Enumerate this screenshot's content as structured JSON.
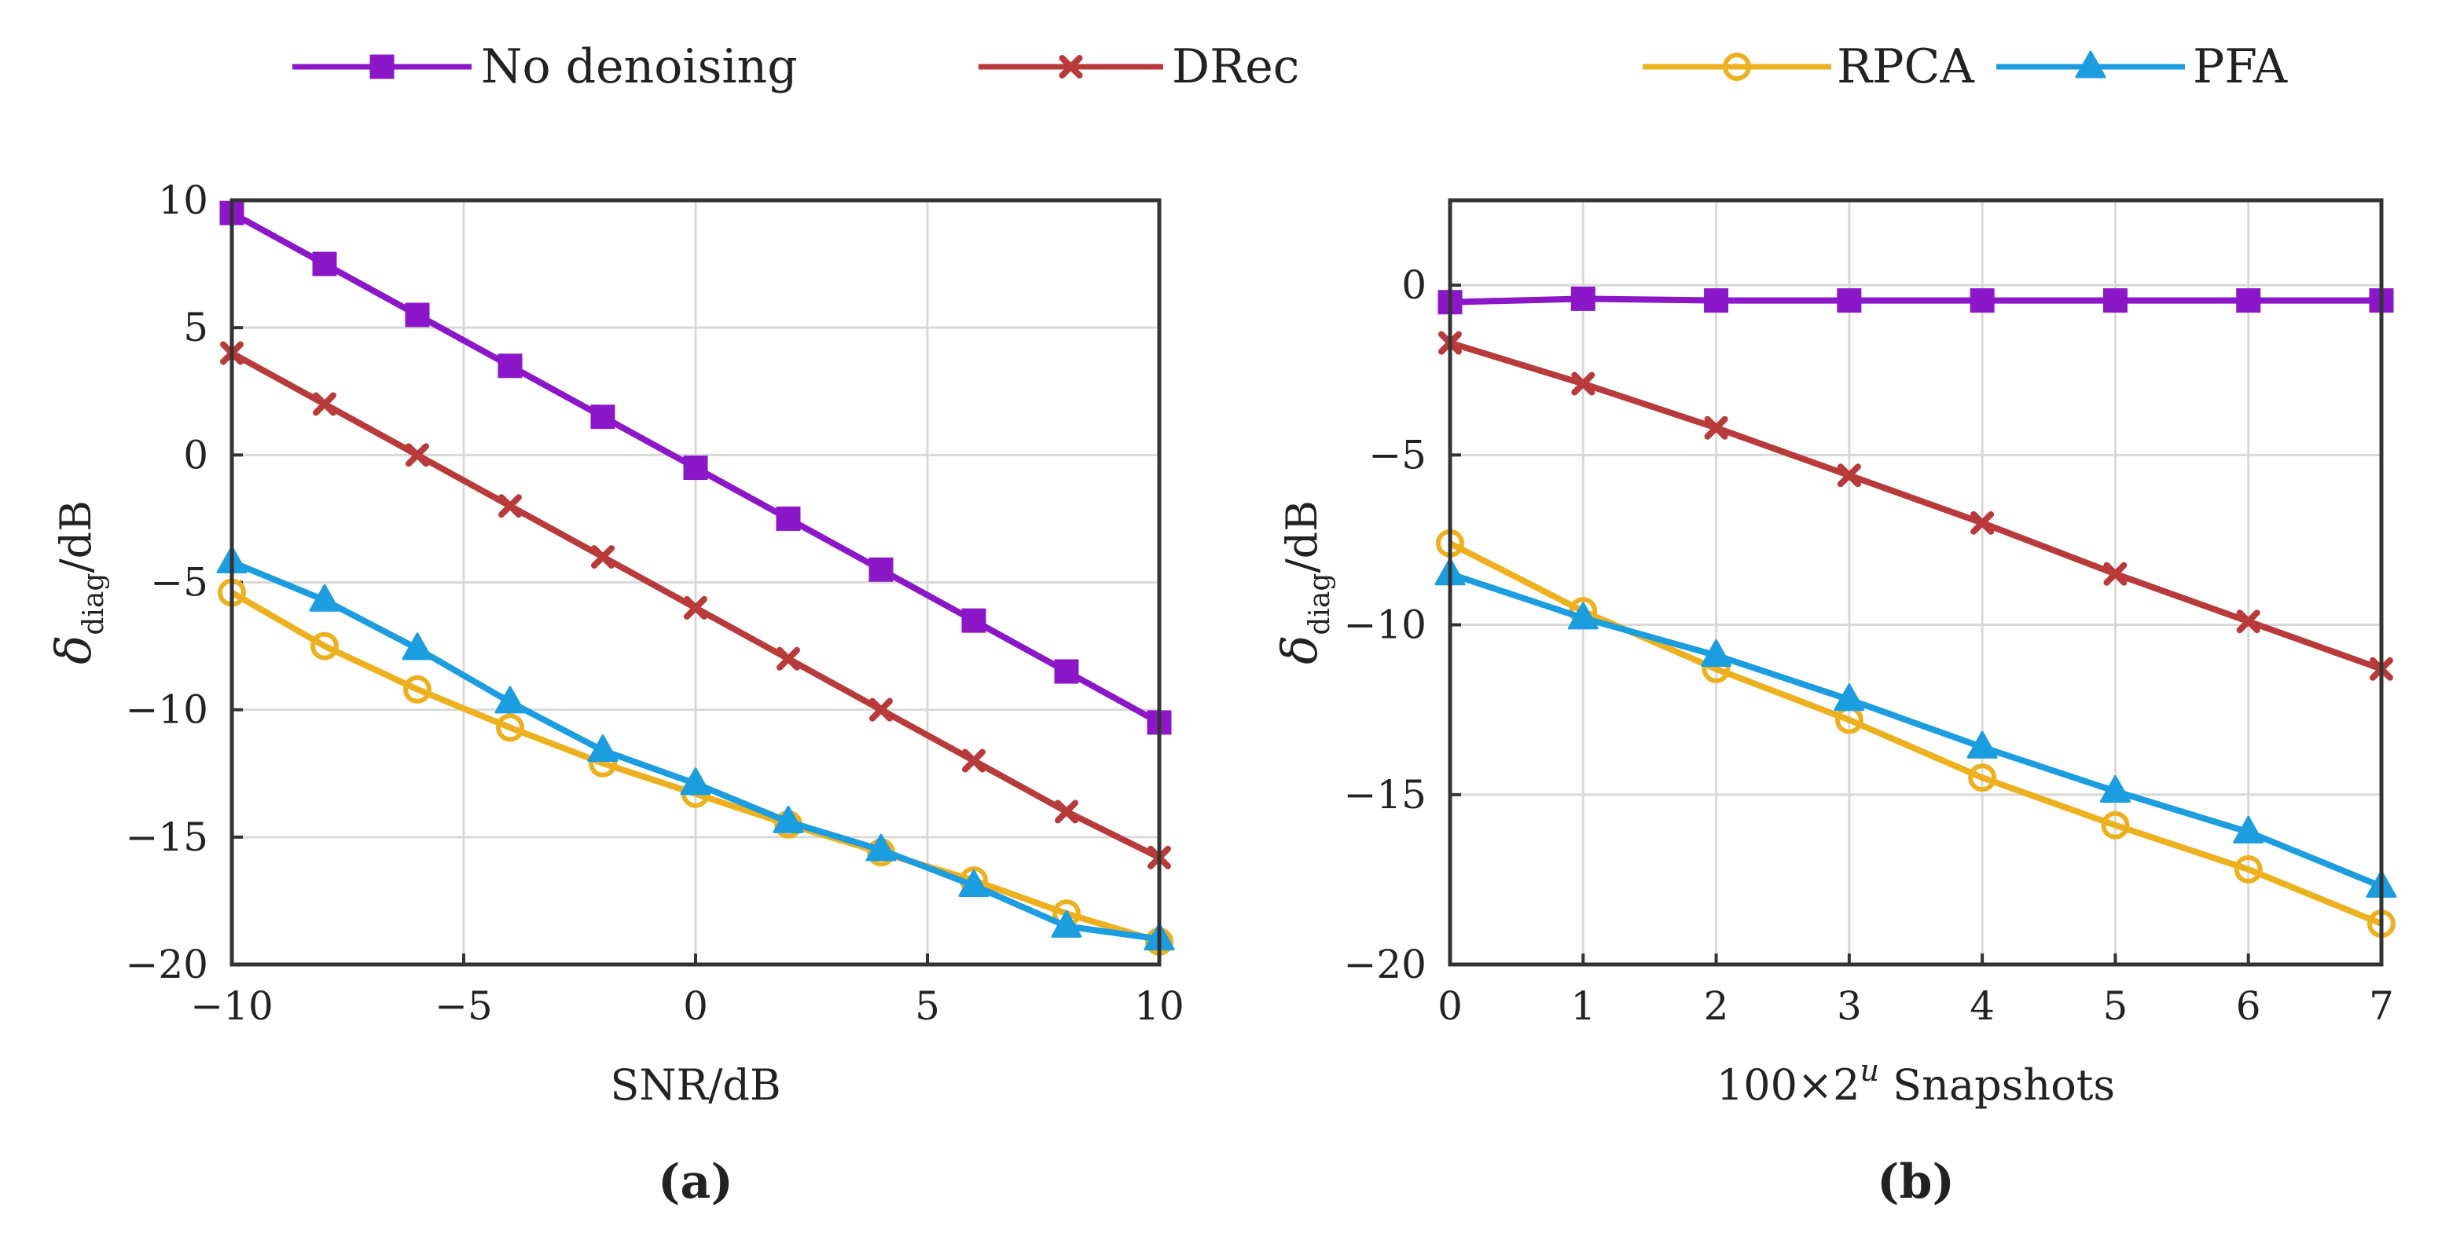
{
  "legend": [
    {
      "name": "No denoising",
      "color": "#8B17C8",
      "marker": "square"
    },
    {
      "name": "DRec",
      "color": "#B83A3A",
      "marker": "x"
    },
    {
      "name": "RPCA",
      "color": "#EDB120",
      "marker": "circle"
    },
    {
      "name": "PFA",
      "color": "#1C9DE0",
      "marker": "triangle"
    }
  ],
  "chart_data": [
    {
      "type": "line",
      "panel_label": "(a)",
      "xlabel": "SNR/dB",
      "ylabel": {
        "symbol": "δ",
        "subscript": "diag",
        "unit": "/dB"
      },
      "xlim": [
        -10,
        10
      ],
      "ylim": [
        -20,
        10
      ],
      "xticks": [
        -10,
        -5,
        0,
        5,
        10
      ],
      "xtick_labels": [
        "−10",
        "−5",
        "0",
        "5",
        "10"
      ],
      "yticks": [
        10,
        5,
        0,
        -5,
        -10,
        -15,
        -20
      ],
      "ytick_labels": [
        "10",
        "5",
        "0",
        "−5",
        "−10",
        "−15",
        "−20"
      ],
      "grid": true,
      "x": [
        -10,
        -8,
        -6,
        -4,
        -2,
        0,
        2,
        4,
        6,
        8,
        10
      ],
      "series": [
        {
          "name": "No denoising",
          "values": [
            9.5,
            7.5,
            5.5,
            3.5,
            1.5,
            -0.5,
            -2.5,
            -4.5,
            -6.5,
            -8.5,
            -10.5
          ]
        },
        {
          "name": "DRec",
          "values": [
            4.0,
            2.0,
            0.0,
            -2.0,
            -4.0,
            -6.0,
            -8.0,
            -10.0,
            -12.0,
            -14.0,
            -15.8
          ]
        },
        {
          "name": "RPCA",
          "values": [
            -5.4,
            -7.5,
            -9.2,
            -10.7,
            -12.1,
            -13.3,
            -14.5,
            -15.6,
            -16.7,
            -18.0,
            -19.1
          ]
        },
        {
          "name": "PFA",
          "values": [
            -4.2,
            -5.7,
            -7.6,
            -9.7,
            -11.6,
            -12.9,
            -14.4,
            -15.5,
            -16.9,
            -18.5,
            -19.0
          ]
        }
      ]
    },
    {
      "type": "line",
      "panel_label": "(b)",
      "xlabel": {
        "prefix": "100×2",
        "superscript": "u",
        "suffix": " Snapshots"
      },
      "ylabel": {
        "symbol": "δ",
        "subscript": "diag",
        "unit": "/dB"
      },
      "xlim": [
        0,
        7
      ],
      "ylim": [
        -20,
        2.5
      ],
      "xticks": [
        0,
        1,
        2,
        3,
        4,
        5,
        6,
        7
      ],
      "xtick_labels": [
        "0",
        "1",
        "2",
        "3",
        "4",
        "5",
        "6",
        "7"
      ],
      "yticks": [
        0,
        -5,
        -10,
        -15,
        -20
      ],
      "ytick_labels": [
        "0",
        "−5",
        "−10",
        "−15",
        "−20"
      ],
      "grid": true,
      "x": [
        0,
        1,
        2,
        3,
        4,
        5,
        6,
        7
      ],
      "series": [
        {
          "name": "No denoising",
          "values": [
            -0.5,
            -0.4,
            -0.45,
            -0.45,
            -0.45,
            -0.45,
            -0.45,
            -0.45
          ]
        },
        {
          "name": "DRec",
          "values": [
            -1.7,
            -2.9,
            -4.2,
            -5.6,
            -7.0,
            -8.5,
            -9.9,
            -11.3
          ]
        },
        {
          "name": "RPCA",
          "values": [
            -7.6,
            -9.6,
            -11.3,
            -12.8,
            -14.5,
            -15.9,
            -17.2,
            -18.8
          ]
        },
        {
          "name": "PFA",
          "values": [
            -8.5,
            -9.8,
            -10.9,
            -12.2,
            -13.6,
            -14.9,
            -16.1,
            -17.7
          ]
        }
      ]
    }
  ]
}
